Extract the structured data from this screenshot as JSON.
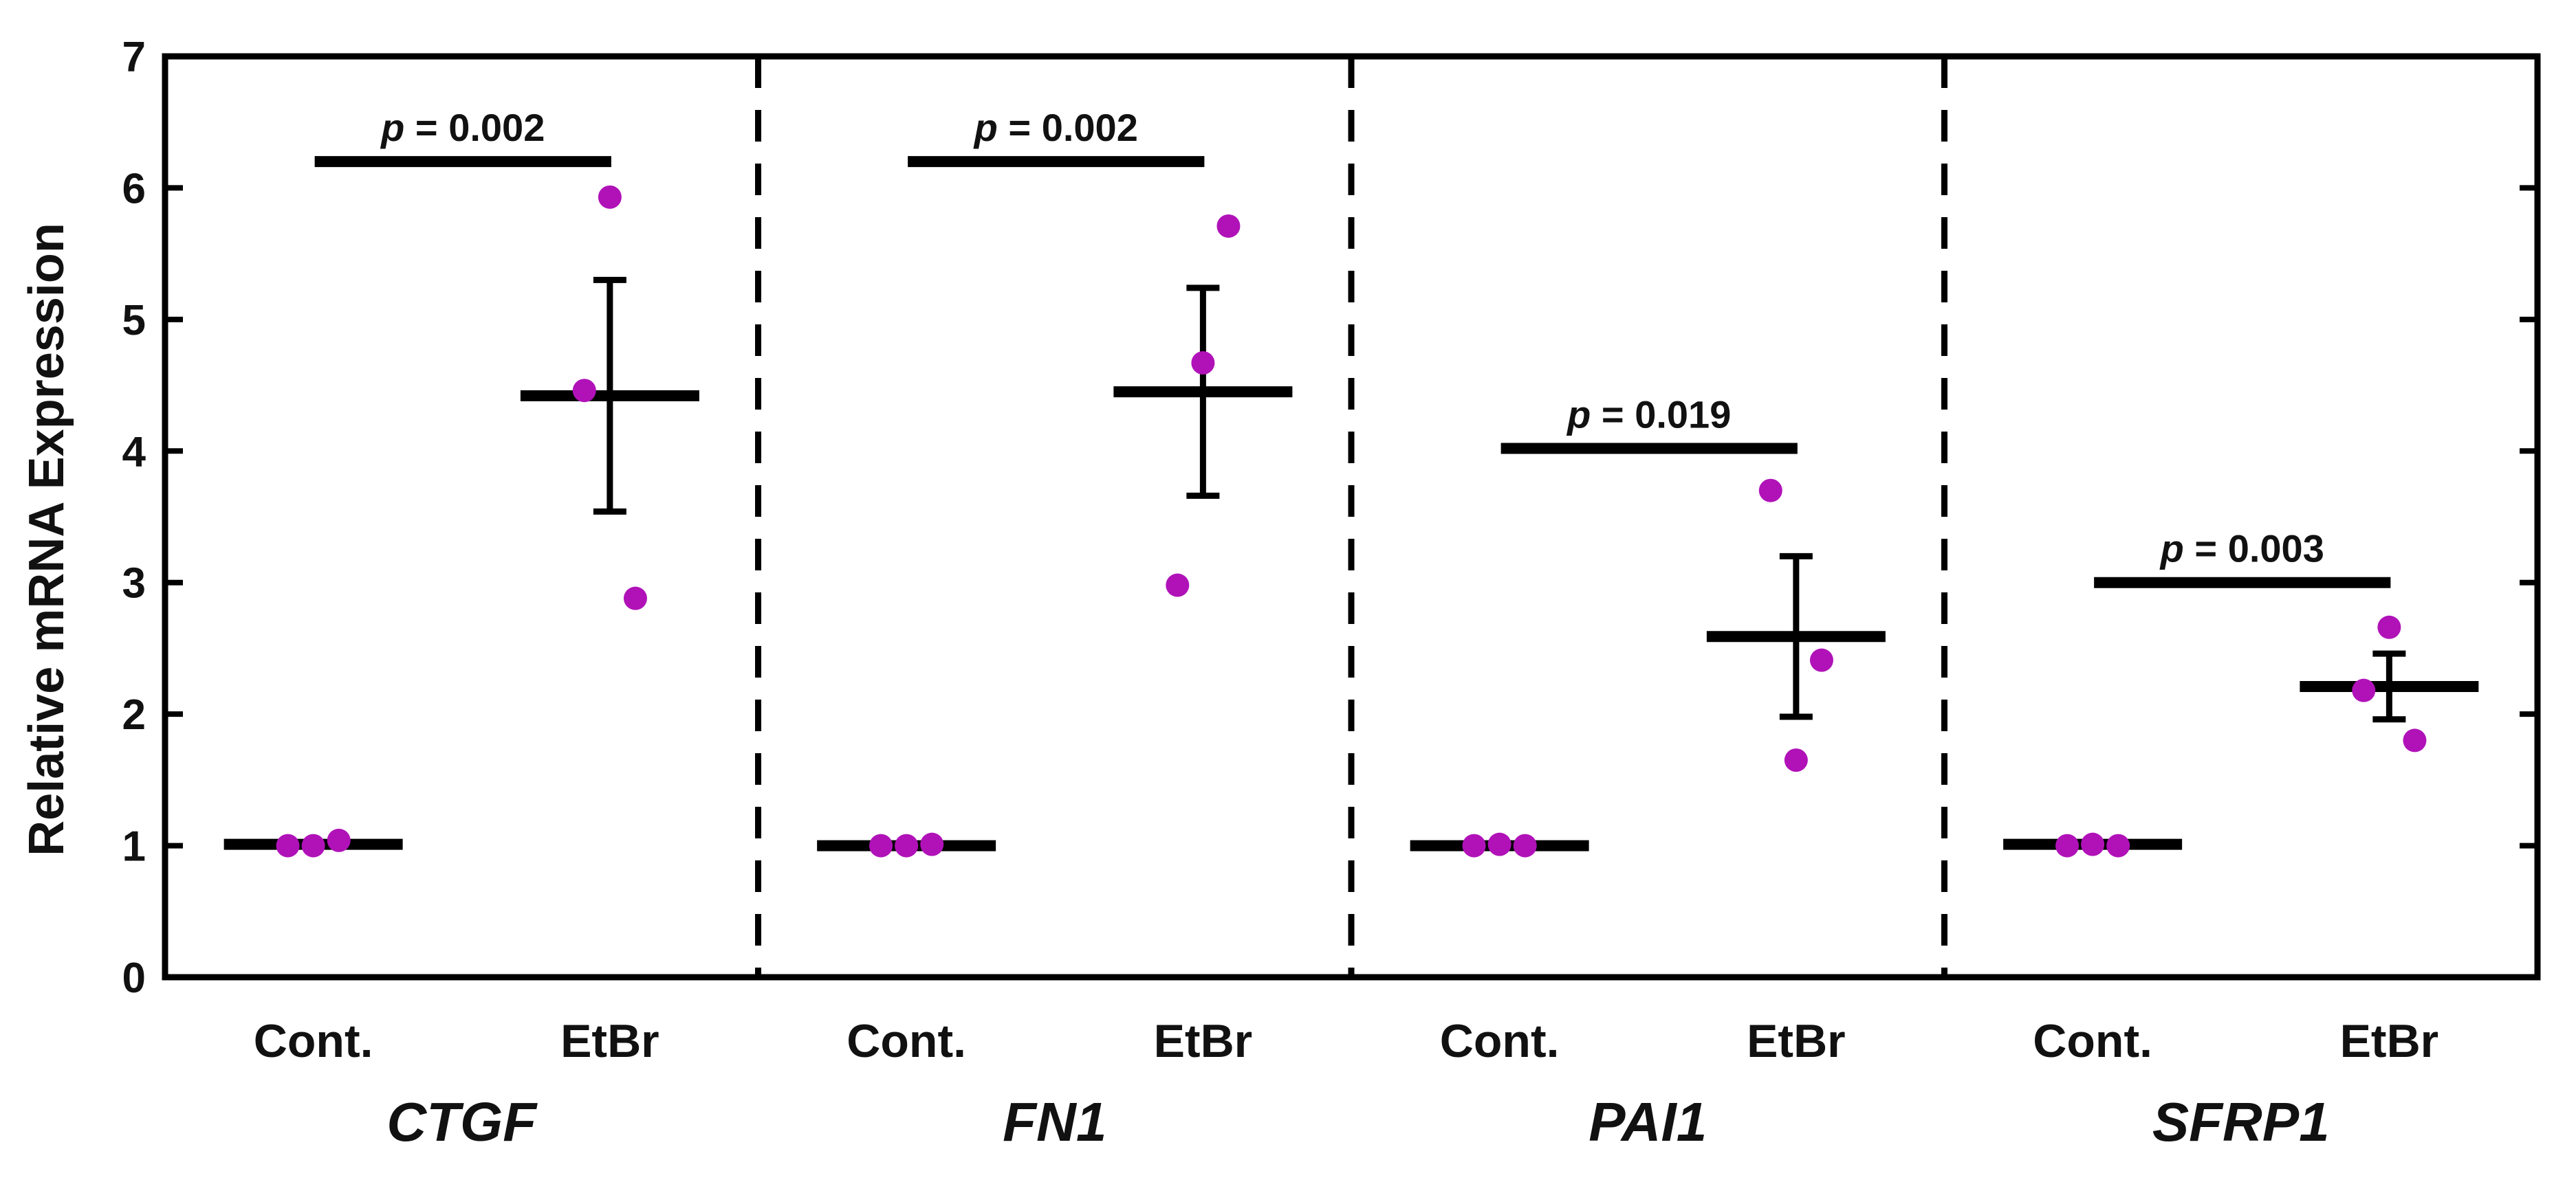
{
  "chart_data": {
    "type": "scatter",
    "ylabel": "Relative mRNA Expression",
    "ylim": [
      0,
      7
    ],
    "yticks": [
      "0",
      "1",
      "2",
      "3",
      "4",
      "5",
      "6",
      "7"
    ],
    "group_labels": [
      "Cont.",
      "EtBr"
    ],
    "colors": {
      "point": "#b012b8",
      "line": "#000000"
    },
    "panels": [
      {
        "gene": "CTGF",
        "p_prefix": "p",
        "p_text": "= 0.002",
        "bracket_y": 6.2,
        "groups": [
          {
            "label": "Cont.",
            "points": [
              1.0,
              1.0,
              1.04
            ],
            "mean": 1.01,
            "error": null
          },
          {
            "label": "EtBr",
            "points": [
              4.46,
              5.93,
              2.88
            ],
            "mean": 4.42,
            "error": [
              3.54,
              5.3
            ]
          }
        ]
      },
      {
        "gene": "FN1",
        "p_prefix": "p",
        "p_text": "= 0.002",
        "bracket_y": 6.2,
        "groups": [
          {
            "label": "Cont.",
            "points": [
              1.0,
              1.0,
              1.01
            ],
            "mean": 1.0,
            "error": null
          },
          {
            "label": "EtBr",
            "points": [
              2.98,
              4.67,
              5.71
            ],
            "mean": 4.45,
            "error": [
              3.66,
              5.24
            ]
          }
        ]
      },
      {
        "gene": "PAI1",
        "p_prefix": "p",
        "p_text": "= 0.019",
        "bracket_y": 4.02,
        "groups": [
          {
            "label": "Cont.",
            "points": [
              1.0,
              1.01,
              1.0
            ],
            "mean": 1.0,
            "error": null
          },
          {
            "label": "EtBr",
            "points": [
              3.7,
              1.65,
              2.41
            ],
            "mean": 2.59,
            "error": [
              1.98,
              3.2
            ]
          }
        ]
      },
      {
        "gene": "SFRP1",
        "p_prefix": "p",
        "p_text": "= 0.003",
        "bracket_y": 3.0,
        "groups": [
          {
            "label": "Cont.",
            "points": [
              1.0,
              1.01,
              1.0
            ],
            "mean": 1.01,
            "error": null
          },
          {
            "label": "EtBr",
            "points": [
              2.18,
              2.66,
              1.8
            ],
            "mean": 2.21,
            "error": [
              1.96,
              2.46
            ]
          }
        ]
      }
    ]
  }
}
